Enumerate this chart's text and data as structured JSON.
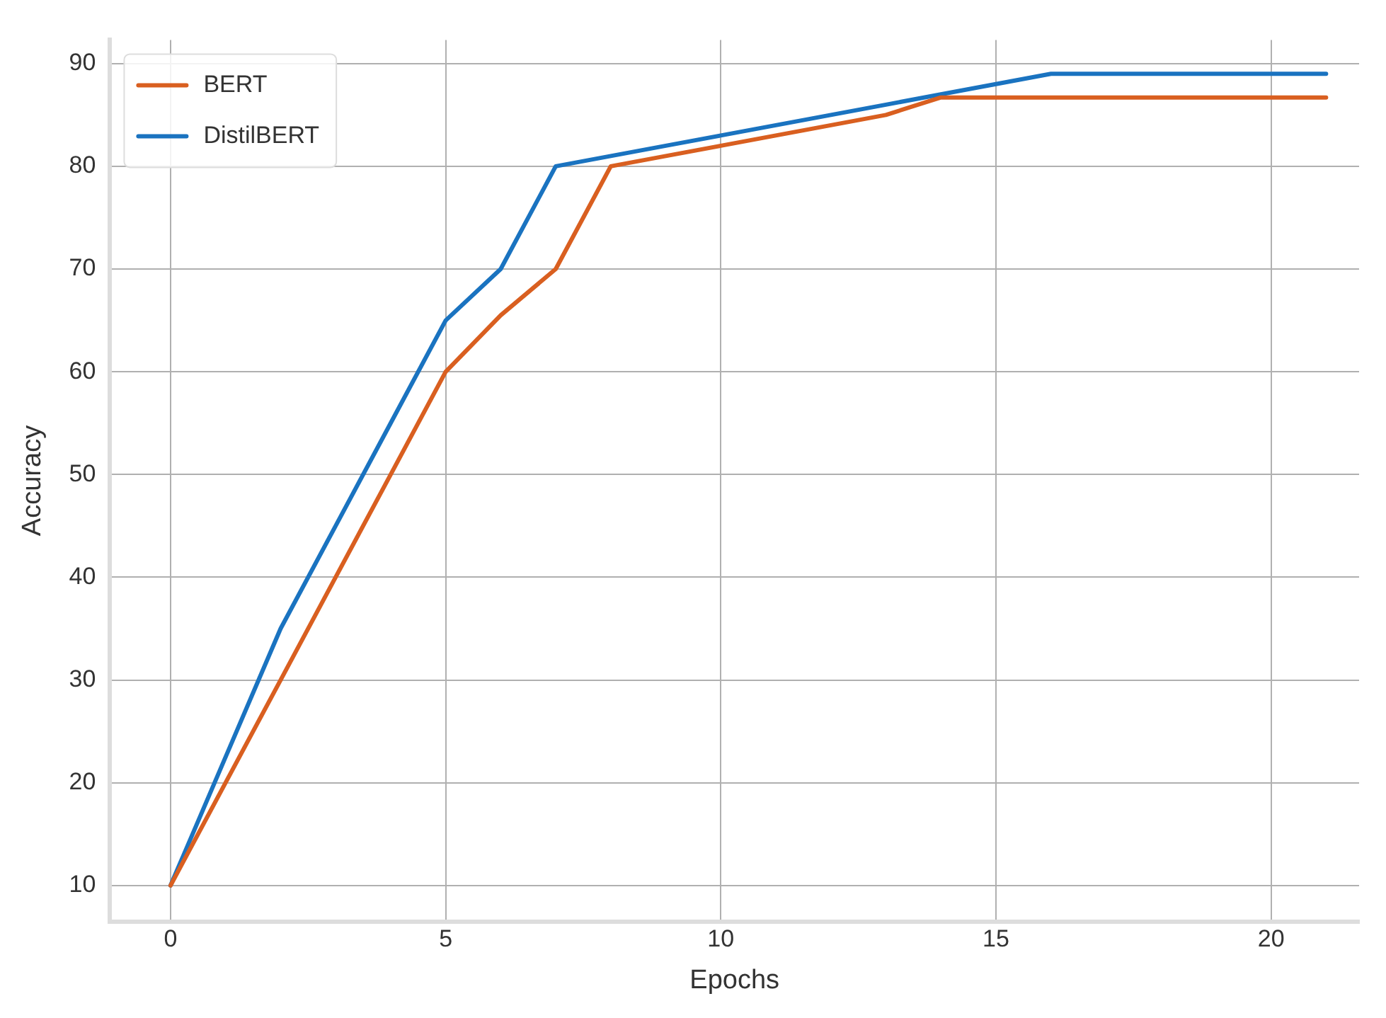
{
  "chart_data": {
    "type": "line",
    "xlabel": "Epochs",
    "ylabel": "Accuracy",
    "x": [
      0,
      1,
      2,
      3,
      4,
      5,
      6,
      7,
      8,
      9,
      10,
      11,
      12,
      13,
      14,
      15,
      16,
      17,
      18,
      19,
      20,
      21
    ],
    "series": [
      {
        "name": "BERT",
        "color": "#d95f20",
        "values": [
          10,
          20,
          30,
          40,
          50,
          60,
          65.5,
          70,
          80,
          81,
          82,
          83,
          84,
          85,
          86.7,
          86.7,
          86.7,
          86.7,
          86.7,
          86.7,
          86.7,
          86.7
        ]
      },
      {
        "name": "DistilBERT",
        "color": "#1a73c0",
        "values": [
          10,
          22.5,
          35,
          45,
          55,
          65,
          70,
          80,
          81,
          82,
          83,
          84,
          85,
          86,
          87,
          88,
          89,
          89,
          89,
          89,
          89,
          89
        ]
      }
    ],
    "xlim": [
      -1.1,
      21.6
    ],
    "xticks": [
      0,
      5,
      10,
      15,
      20
    ],
    "ylim": [
      6.5,
      92.3
    ],
    "yticks": [
      10,
      20,
      30,
      40,
      50,
      60,
      70,
      80,
      90
    ],
    "grid": true,
    "legend": "top left",
    "marker": "none",
    "line_style": "solid"
  }
}
